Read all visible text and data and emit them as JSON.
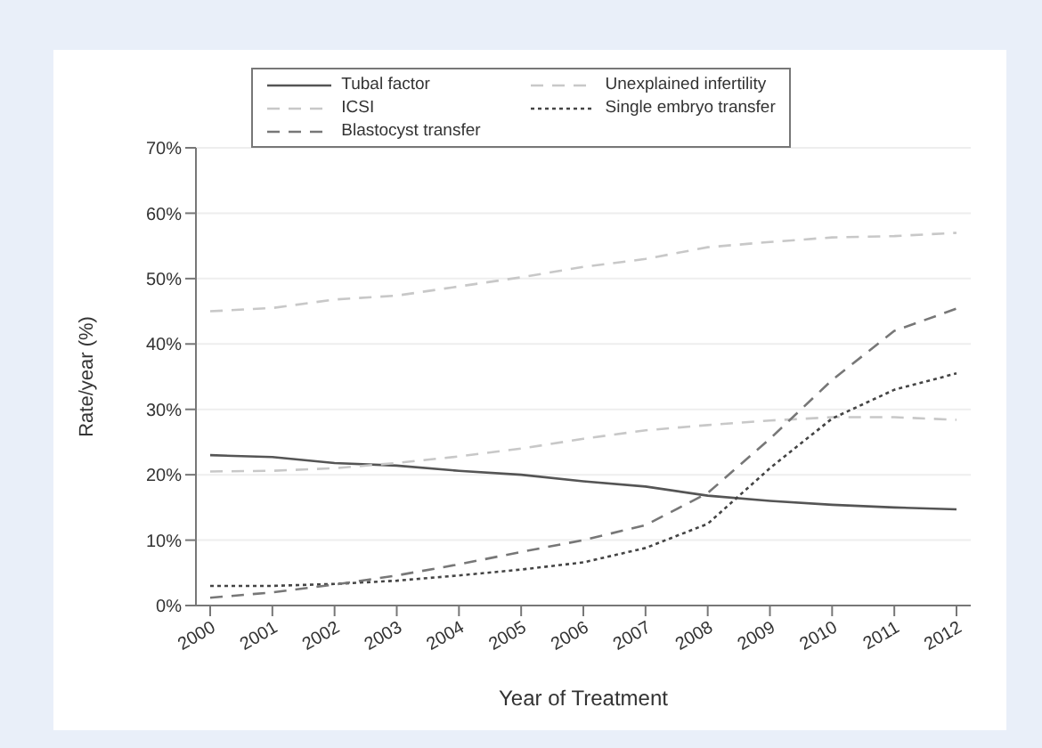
{
  "chart_data": {
    "type": "line",
    "xlabel": "Year of Treatment",
    "ylabel": "Rate/year (%)",
    "categories": [
      "2000",
      "2001",
      "2002",
      "2003",
      "2004",
      "2005",
      "2006",
      "2007",
      "2008",
      "2009",
      "2010",
      "2011",
      "2012"
    ],
    "series": [
      {
        "name": "Tubal factor",
        "color": "#555555",
        "line_style": "solid",
        "values": [
          23,
          22.7,
          21.8,
          21.4,
          20.6,
          20,
          19,
          18.2,
          16.8,
          16,
          15.4,
          15,
          14.7
        ]
      },
      {
        "name": "Unexplained infertility",
        "color": "#c8c8c8",
        "line_style": "dashed",
        "values": [
          20.5,
          20.6,
          21,
          21.8,
          22.8,
          24,
          25.5,
          26.8,
          27.6,
          28.3,
          28.8,
          28.8,
          28.4
        ]
      },
      {
        "name": "ICSI",
        "color": "#c8c8c8",
        "line_style": "dashed",
        "values": [
          45,
          45.5,
          46.8,
          47.4,
          48.8,
          50.2,
          51.8,
          53,
          54.8,
          55.6,
          56.3,
          56.5,
          57
        ]
      },
      {
        "name": "Single embryo transfer",
        "color": "#444444",
        "line_style": "dotted",
        "values": [
          3,
          3,
          3.3,
          3.8,
          4.6,
          5.5,
          6.6,
          8.8,
          12.5,
          21,
          28.6,
          33,
          35.5
        ]
      },
      {
        "name": "Blastocyst transfer",
        "color": "#777777",
        "line_style": "dashed",
        "values": [
          1.2,
          2,
          3.2,
          4.6,
          6.3,
          8.2,
          10,
          12.3,
          17.2,
          25.5,
          34.5,
          42,
          45.4
        ]
      }
    ],
    "ylim": [
      0,
      70
    ],
    "yticks": [
      {
        "value": 0,
        "label": "0%"
      },
      {
        "value": 10,
        "label": "10%"
      },
      {
        "value": 20,
        "label": "20%"
      },
      {
        "value": 30,
        "label": "30%"
      },
      {
        "value": 40,
        "label": "40%"
      },
      {
        "value": 50,
        "label": "50%"
      },
      {
        "value": 60,
        "label": "60%"
      },
      {
        "value": 70,
        "label": "70%"
      }
    ],
    "grid": "y",
    "legend": "top",
    "marker": "none"
  }
}
